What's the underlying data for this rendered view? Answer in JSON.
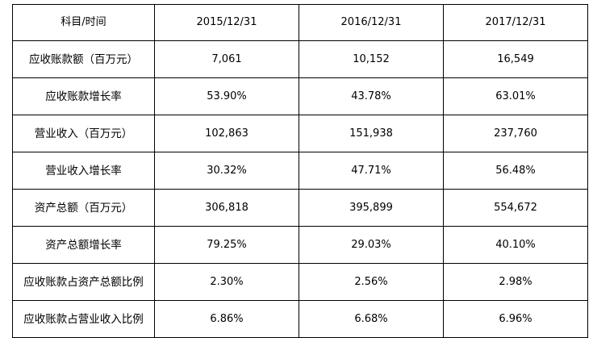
{
  "table": {
    "headers": [
      "科目/时间",
      "2015/12/31",
      "2016/12/31",
      "2017/12/31"
    ],
    "rows": [
      [
        "应收账款额（百万元）",
        "7,061",
        "10,152",
        "16,549"
      ],
      [
        "应收账款增长率",
        "53.90%",
        "43.78%",
        "63.01%"
      ],
      [
        "营业收入（百万元）",
        "102,863",
        "151,938",
        "237,760"
      ],
      [
        "营业收入增长率",
        "30.32%",
        "47.71%",
        "56.48%"
      ],
      [
        "资产总额（百万元）",
        "306,818",
        "395,899",
        "554,672"
      ],
      [
        "资产总额增长率",
        "79.25%",
        "29.03%",
        "40.10%"
      ],
      [
        "应收账款占资产总额比例",
        "2.30%",
        "2.56%",
        "2.98%"
      ],
      [
        "应收账款占营业收入比例",
        "6.86%",
        "6.68%",
        "6.96%"
      ]
    ]
  }
}
